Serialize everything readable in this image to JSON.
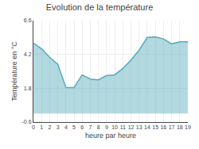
{
  "chart_data": {
    "type": "area",
    "title": "Evolution de la température",
    "xlabel": "heure par heure",
    "ylabel": "Température en °C",
    "x": [
      0,
      1,
      2,
      3,
      4,
      5,
      6,
      7,
      8,
      9,
      10,
      11,
      12,
      13,
      14,
      15,
      16,
      17,
      18,
      19
    ],
    "values": [
      5.0,
      4.6,
      4.0,
      3.5,
      1.85,
      1.85,
      2.75,
      2.45,
      2.4,
      2.7,
      2.75,
      3.2,
      3.8,
      4.5,
      5.4,
      5.45,
      5.3,
      4.95,
      5.1,
      5.1
    ],
    "color": "#55aabb",
    "xlim": [
      0,
      19
    ],
    "xticks": [
      0,
      1,
      2,
      3,
      4,
      5,
      6,
      7,
      8,
      9,
      10,
      11,
      12,
      13,
      14,
      15,
      16,
      17,
      18,
      19
    ],
    "ylim": [
      -0.6,
      6.6
    ],
    "yticks": [
      -0.6,
      1.8,
      4.2,
      6.6
    ],
    "grid": true
  }
}
